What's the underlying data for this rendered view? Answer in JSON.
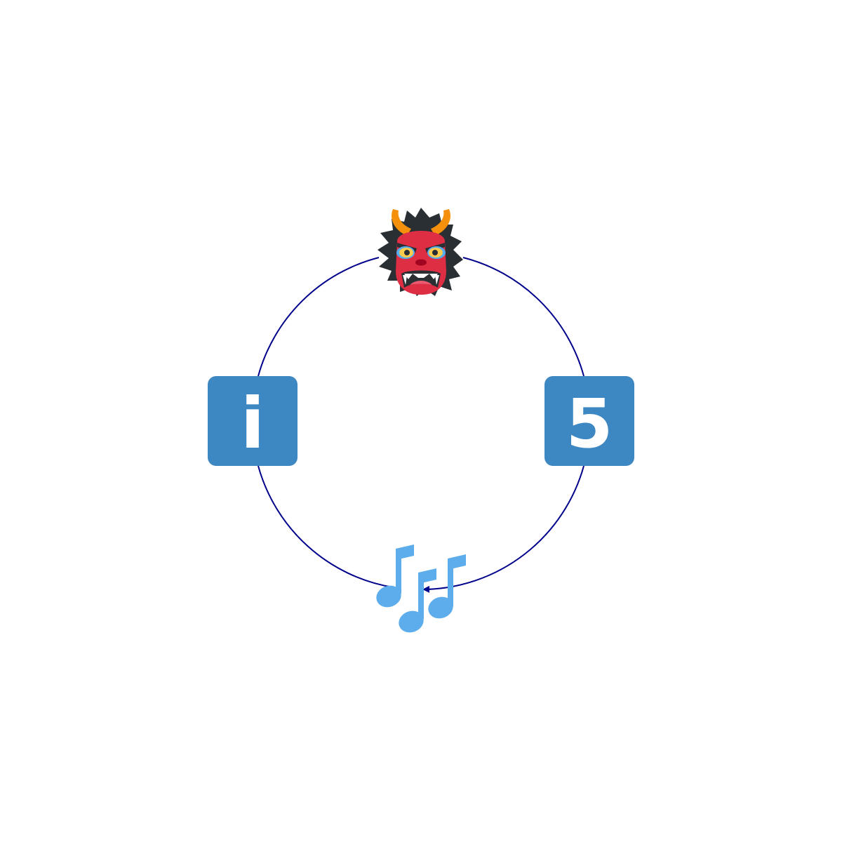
{
  "diagram": {
    "type": "cycle",
    "direction": "clockwise",
    "ring_color": "#00008b",
    "nodes": [
      {
        "id": "ogre",
        "icon": "ogre-icon",
        "position": "top"
      },
      {
        "id": "keycap-5",
        "icon": "keycap-5-icon",
        "label": "5",
        "position": "right"
      },
      {
        "id": "music-notes",
        "icon": "musical-notes-icon",
        "position": "bottom"
      },
      {
        "id": "information",
        "icon": "information-icon",
        "label": "i",
        "position": "left"
      }
    ]
  },
  "colors": {
    "keycap_blue": "#3d88c3",
    "keycap_text": "#ffffff",
    "ogre_red": "#dd2e44",
    "ogre_hair": "#292f33",
    "ogre_horn": "#f4900c",
    "note_blue": "#5dadec"
  }
}
